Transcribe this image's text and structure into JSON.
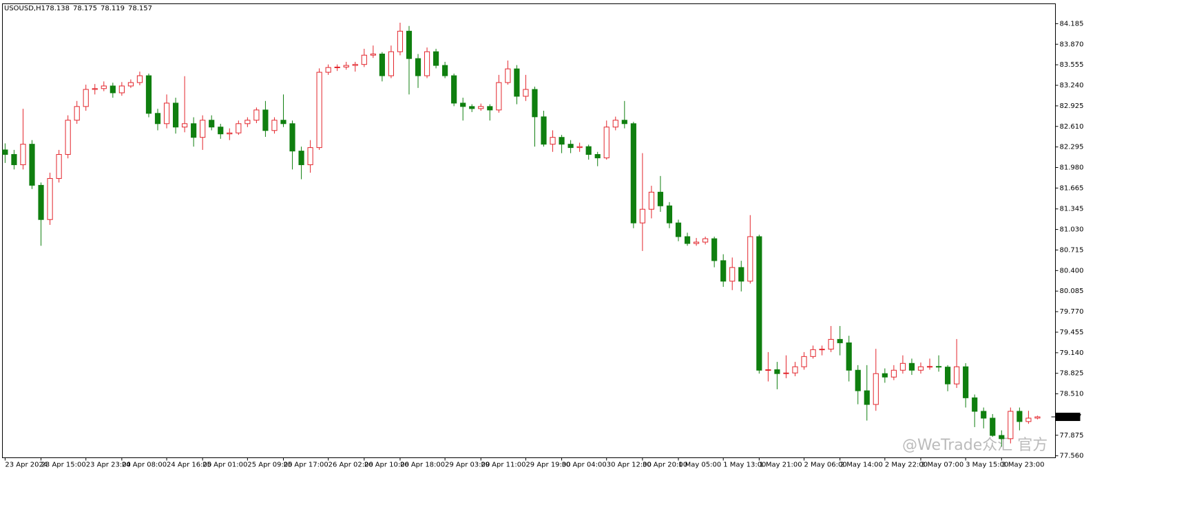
{
  "chart_data": {
    "type": "candlestick",
    "symbol": "USOUSD,H1",
    "header_values": [
      78.138,
      78.175,
      78.119,
      78.157
    ],
    "last_price": 78.157,
    "watermark": "@WeTrade众汇 官方",
    "up_color": "#e3242b",
    "down_color": "#0f7f0f",
    "ylim": [
      77.53,
      84.49
    ],
    "yticks": [
      {
        "value": 84.185,
        "label": "84.185"
      },
      {
        "value": 83.87,
        "label": "83.870"
      },
      {
        "value": 83.555,
        "label": "83.555"
      },
      {
        "value": 83.24,
        "label": "83.240"
      },
      {
        "value": 82.925,
        "label": "82.925"
      },
      {
        "value": 82.61,
        "label": "82.610"
      },
      {
        "value": 82.295,
        "label": "82.295"
      },
      {
        "value": 81.98,
        "label": "81.980"
      },
      {
        "value": 81.665,
        "label": "81.665"
      },
      {
        "value": 81.345,
        "label": "81.345"
      },
      {
        "value": 81.03,
        "label": "81.030"
      },
      {
        "value": 80.715,
        "label": "80.715"
      },
      {
        "value": 80.4,
        "label": "80.400"
      },
      {
        "value": 80.085,
        "label": "80.085"
      },
      {
        "value": 79.77,
        "label": "79.770"
      },
      {
        "value": 79.455,
        "label": "79.455"
      },
      {
        "value": 79.14,
        "label": "79.140"
      },
      {
        "value": 78.825,
        "label": "78.825"
      },
      {
        "value": 78.51,
        "label": "78.510"
      },
      {
        "value": 77.875,
        "label": "77.875"
      },
      {
        "value": 77.56,
        "label": "77.560"
      }
    ],
    "xlim": [
      -0.3,
      117
    ],
    "xticks": [
      {
        "value": 0,
        "label": "23 Apr 2024"
      },
      {
        "value": 4,
        "label": "23 Apr 15:00"
      },
      {
        "value": 9,
        "label": "23 Apr 23:00"
      },
      {
        "value": 13,
        "label": "24 Apr 08:00"
      },
      {
        "value": 18,
        "label": "24 Apr 16:00"
      },
      {
        "value": 22,
        "label": "25 Apr 01:00"
      },
      {
        "value": 27,
        "label": "25 Apr 09:00"
      },
      {
        "value": 31,
        "label": "25 Apr 17:00"
      },
      {
        "value": 36,
        "label": "26 Apr 02:00"
      },
      {
        "value": 40,
        "label": "26 Apr 10:00"
      },
      {
        "value": 44,
        "label": "26 Apr 18:00"
      },
      {
        "value": 49,
        "label": "29 Apr 03:00"
      },
      {
        "value": 53,
        "label": "29 Apr 11:00"
      },
      {
        "value": 58,
        "label": "29 Apr 19:00"
      },
      {
        "value": 62,
        "label": "30 Apr 04:00"
      },
      {
        "value": 67,
        "label": "30 Apr 12:00"
      },
      {
        "value": 71,
        "label": "30 Apr 20:00"
      },
      {
        "value": 75,
        "label": "1 May 05:00"
      },
      {
        "value": 80,
        "label": "1 May 13:00"
      },
      {
        "value": 84,
        "label": "1 May 21:00"
      },
      {
        "value": 89,
        "label": "2 May 06:00"
      },
      {
        "value": 93,
        "label": "2 May 14:00"
      },
      {
        "value": 98,
        "label": "2 May 22:00"
      },
      {
        "value": 102,
        "label": "3 May 07:00"
      },
      {
        "value": 107,
        "label": "3 May 15:00"
      },
      {
        "value": 111,
        "label": "3 May 23:00"
      }
    ],
    "ohlc": [
      [
        82.25,
        82.35,
        82.05,
        82.18
      ],
      [
        82.18,
        82.25,
        81.95,
        82.022
      ],
      [
        82.022,
        82.88,
        81.95,
        82.337
      ],
      [
        82.337,
        82.4,
        81.65,
        81.707
      ],
      [
        81.707,
        81.75,
        80.78,
        81.182
      ],
      [
        81.182,
        81.9,
        81.1,
        81.812
      ],
      [
        81.812,
        82.25,
        81.75,
        82.18
      ],
      [
        82.18,
        82.78,
        82.12,
        82.705
      ],
      [
        82.705,
        83.0,
        82.65,
        82.915
      ],
      [
        82.915,
        83.25,
        82.85,
        83.177
      ],
      [
        83.177,
        83.26,
        83.1,
        83.19
      ],
      [
        83.19,
        83.3,
        83.15,
        83.23
      ],
      [
        83.23,
        83.28,
        83.05,
        83.125
      ],
      [
        83.125,
        83.29,
        83.08,
        83.23
      ],
      [
        83.23,
        83.33,
        83.2,
        83.282
      ],
      [
        83.282,
        83.45,
        83.24,
        83.387
      ],
      [
        83.387,
        83.42,
        82.75,
        82.81
      ],
      [
        82.81,
        82.88,
        82.55,
        82.652
      ],
      [
        82.652,
        83.1,
        82.58,
        82.967
      ],
      [
        82.967,
        83.05,
        82.5,
        82.6
      ],
      [
        82.6,
        83.38,
        82.52,
        82.652
      ],
      [
        82.652,
        82.75,
        82.3,
        82.442
      ],
      [
        82.442,
        82.78,
        82.25,
        82.705
      ],
      [
        82.705,
        82.78,
        82.55,
        82.6
      ],
      [
        82.6,
        82.65,
        82.42,
        82.495
      ],
      [
        82.495,
        82.58,
        82.4,
        82.51
      ],
      [
        82.51,
        82.7,
        82.48,
        82.652
      ],
      [
        82.652,
        82.75,
        82.6,
        82.705
      ],
      [
        82.705,
        82.9,
        82.66,
        82.862
      ],
      [
        82.862,
        83.0,
        82.45,
        82.547
      ],
      [
        82.547,
        82.75,
        82.5,
        82.705
      ],
      [
        82.705,
        83.1,
        82.6,
        82.652
      ],
      [
        82.652,
        82.7,
        81.95,
        82.232
      ],
      [
        82.232,
        82.3,
        81.8,
        82.022
      ],
      [
        82.022,
        82.4,
        81.9,
        82.285
      ],
      [
        82.285,
        83.5,
        82.25,
        83.44
      ],
      [
        83.44,
        83.56,
        83.4,
        83.513
      ],
      [
        83.513,
        83.56,
        83.46,
        83.52
      ],
      [
        83.52,
        83.6,
        83.48,
        83.545
      ],
      [
        83.545,
        83.6,
        83.45,
        83.56
      ],
      [
        83.56,
        83.8,
        83.52,
        83.702
      ],
      [
        83.702,
        83.85,
        83.66,
        83.72
      ],
      [
        83.72,
        83.75,
        83.3,
        83.387
      ],
      [
        83.387,
        83.85,
        83.35,
        83.755
      ],
      [
        83.755,
        84.2,
        83.7,
        84.07
      ],
      [
        84.07,
        84.15,
        83.1,
        83.65
      ],
      [
        83.65,
        83.72,
        83.2,
        83.387
      ],
      [
        83.387,
        83.82,
        83.35,
        83.755
      ],
      [
        83.755,
        83.8,
        83.5,
        83.545
      ],
      [
        83.545,
        83.6,
        83.35,
        83.387
      ],
      [
        83.387,
        83.42,
        82.92,
        82.967
      ],
      [
        82.967,
        83.05,
        82.7,
        82.915
      ],
      [
        82.915,
        82.95,
        82.83,
        82.883
      ],
      [
        82.883,
        82.96,
        82.85,
        82.915
      ],
      [
        82.915,
        82.95,
        82.7,
        82.862
      ],
      [
        82.862,
        83.4,
        82.82,
        83.282
      ],
      [
        83.282,
        83.62,
        83.25,
        83.492
      ],
      [
        83.492,
        83.55,
        82.95,
        83.072
      ],
      [
        83.072,
        83.4,
        83.0,
        83.177
      ],
      [
        83.177,
        83.22,
        82.3,
        82.757
      ],
      [
        82.757,
        82.85,
        82.3,
        82.337
      ],
      [
        82.337,
        82.55,
        82.22,
        82.442
      ],
      [
        82.442,
        82.48,
        82.2,
        82.337
      ],
      [
        82.337,
        82.4,
        82.2,
        82.285
      ],
      [
        82.285,
        82.36,
        82.22,
        82.3
      ],
      [
        82.3,
        82.33,
        82.1,
        82.18
      ],
      [
        82.18,
        82.22,
        82.0,
        82.127
      ],
      [
        82.127,
        82.7,
        82.1,
        82.6
      ],
      [
        82.6,
        82.76,
        82.55,
        82.705
      ],
      [
        82.705,
        83.0,
        82.58,
        82.652
      ],
      [
        82.652,
        82.68,
        81.05,
        81.13
      ],
      [
        81.13,
        82.2,
        80.7,
        81.34
      ],
      [
        81.34,
        81.7,
        81.2,
        81.602
      ],
      [
        81.602,
        81.85,
        81.3,
        81.392
      ],
      [
        81.392,
        81.45,
        81.05,
        81.13
      ],
      [
        81.13,
        81.18,
        80.85,
        80.92
      ],
      [
        80.92,
        80.98,
        80.78,
        80.815
      ],
      [
        80.815,
        80.9,
        80.78,
        80.836
      ],
      [
        80.836,
        80.92,
        80.8,
        80.888
      ],
      [
        80.888,
        80.92,
        80.45,
        80.552
      ],
      [
        80.552,
        80.65,
        80.15,
        80.237
      ],
      [
        80.237,
        80.6,
        80.1,
        80.447
      ],
      [
        80.447,
        80.55,
        80.08,
        80.237
      ],
      [
        80.237,
        81.25,
        80.2,
        80.92
      ],
      [
        80.92,
        80.95,
        78.82,
        78.872
      ],
      [
        78.872,
        79.15,
        78.7,
        78.88
      ],
      [
        78.88,
        79.0,
        78.58,
        78.82
      ],
      [
        78.82,
        79.1,
        78.75,
        78.83
      ],
      [
        78.83,
        79.0,
        78.78,
        78.925
      ],
      [
        78.925,
        79.15,
        78.88,
        79.082
      ],
      [
        79.082,
        79.25,
        79.05,
        79.187
      ],
      [
        79.187,
        79.25,
        79.1,
        79.195
      ],
      [
        79.195,
        79.55,
        79.15,
        79.345
      ],
      [
        79.345,
        79.55,
        79.1,
        79.292
      ],
      [
        79.292,
        79.4,
        78.7,
        78.872
      ],
      [
        78.872,
        78.95,
        78.35,
        78.557
      ],
      [
        78.557,
        78.95,
        78.1,
        78.347
      ],
      [
        78.347,
        79.2,
        78.25,
        78.82
      ],
      [
        78.82,
        78.9,
        78.68,
        78.767
      ],
      [
        78.767,
        78.95,
        78.72,
        78.872
      ],
      [
        78.872,
        79.1,
        78.82,
        78.977
      ],
      [
        78.977,
        79.05,
        78.8,
        78.872
      ],
      [
        78.872,
        78.99,
        78.82,
        78.925
      ],
      [
        78.925,
        79.05,
        78.88,
        78.93
      ],
      [
        78.93,
        79.1,
        78.85,
        78.92
      ],
      [
        78.92,
        78.95,
        78.55,
        78.662
      ],
      [
        78.662,
        79.35,
        78.6,
        78.925
      ],
      [
        78.925,
        78.98,
        78.3,
        78.449
      ],
      [
        78.449,
        78.5,
        78.0,
        78.242
      ],
      [
        78.242,
        78.3,
        77.98,
        78.137
      ],
      [
        78.137,
        78.2,
        77.85,
        77.872
      ],
      [
        77.872,
        77.95,
        77.7,
        77.822
      ],
      [
        77.822,
        78.3,
        77.75,
        78.242
      ],
      [
        78.242,
        78.3,
        77.95,
        78.085
      ],
      [
        78.085,
        78.25,
        78.05,
        78.137
      ],
      [
        78.138,
        78.175,
        78.119,
        78.157
      ]
    ]
  }
}
